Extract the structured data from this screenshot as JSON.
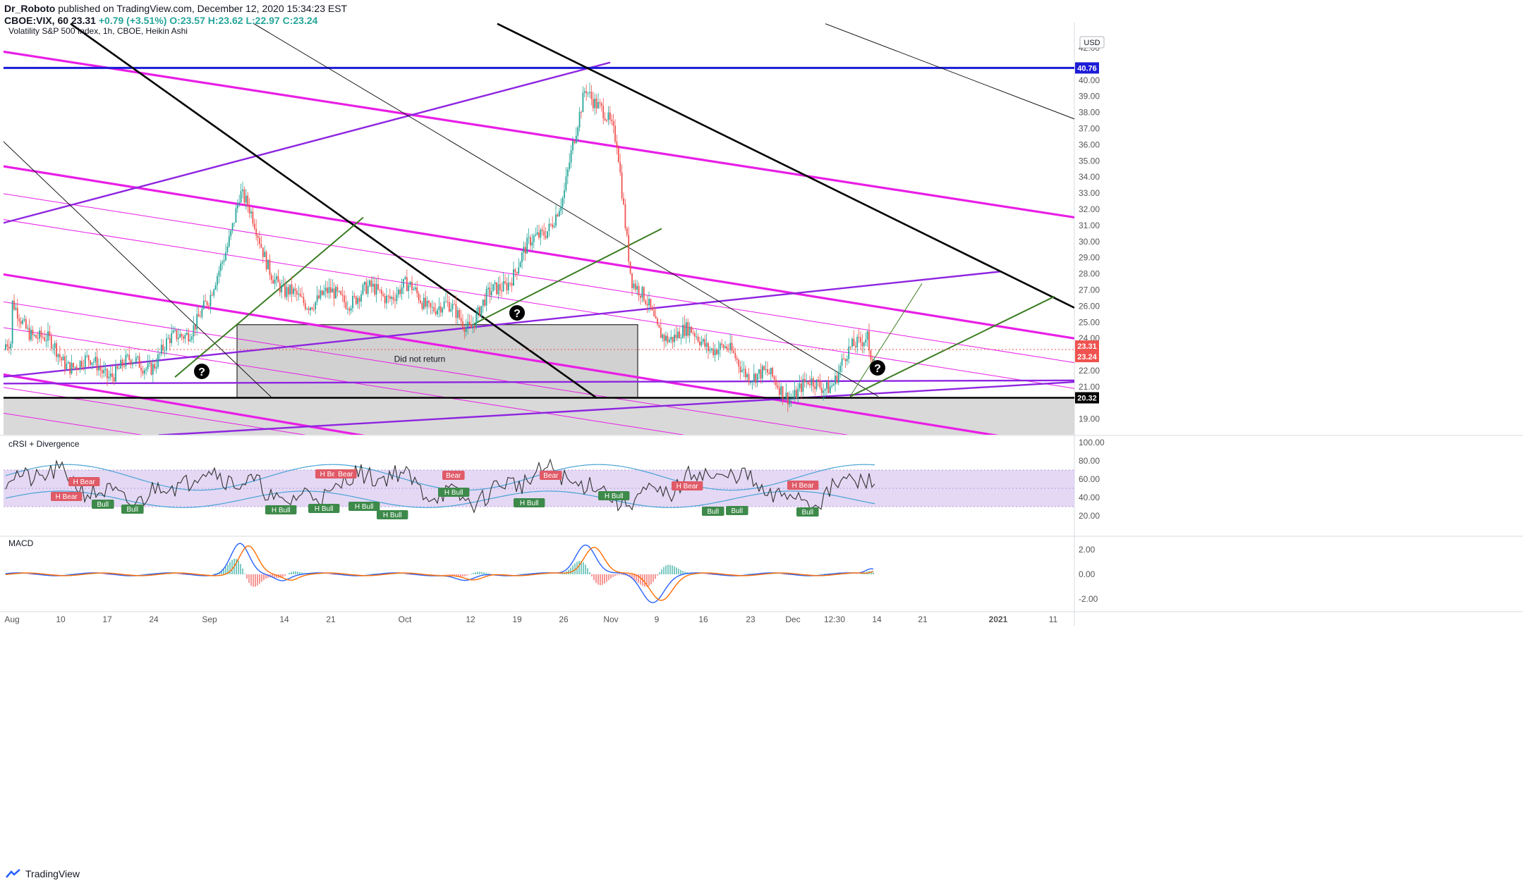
{
  "header": {
    "author": "Dr_Roboto",
    "published_text": "published on TradingView.com, December 12, 2020 15:34:23 EST",
    "symbol_line": "CBOE:VIX, 60",
    "last": "23.31",
    "change": "+0.79 (+3.51%)",
    "open": "O:23.57",
    "high": "H:23.62",
    "low": "L:22.97",
    "close": "C:23.24"
  },
  "panes": {
    "main_title": "Volatility S&P 500 Index, 1h, CBOE, Heikin Ashi",
    "crsi_title": "cRSI + Divergence",
    "macd_title": "MACD"
  },
  "currency": "USD",
  "colors": {
    "up": "#26a69a",
    "down": "#ef5350",
    "magenta": "#e91ee6",
    "purple": "#8e24e0",
    "blue": "#1b1bd6",
    "green": "#3b7d23",
    "black": "#000000",
    "crsi_band": "#d9c8ef",
    "crsi_line": "#333333",
    "crsi_channel": "#4aa3d6",
    "macd": "#2962ff",
    "signal": "#ff6d00"
  },
  "annotations": {
    "box_label": "Did not return",
    "question_mark": "?"
  },
  "price_tags": {
    "top": "40.76",
    "last": "23.31",
    "close": "23.24",
    "floor": "20.32"
  },
  "footer": {
    "brand": "TradingView"
  },
  "chart_data": [
    {
      "type": "line",
      "subtype": "candlestick (Heikin Ashi)",
      "title": "Volatility S&P 500 Index, 1h, CBOE, Heikin Ashi",
      "x_tick_labels": [
        "Aug",
        "10",
        "17",
        "24",
        "Sep",
        "14",
        "21",
        "Oct",
        "12",
        "19",
        "26",
        "Nov",
        "9",
        "16",
        "23",
        "Dec",
        "12:30",
        "14",
        "21",
        "2021",
        "11"
      ],
      "y_tick_labels": [
        "19.00",
        "21.00",
        "22.00",
        "24.00",
        "25.00",
        "26.00",
        "27.00",
        "28.00",
        "29.00",
        "30.00",
        "31.00",
        "32.00",
        "33.00",
        "34.00",
        "35.00",
        "36.00",
        "37.00",
        "38.00",
        "39.00",
        "40.00",
        "42.00"
      ],
      "ylim": [
        18,
        43
      ],
      "series": [
        {
          "name": "",
          "approx_close_path": [
            [
              "Aug",
              25.8
            ],
            [
              "10",
              22.8
            ],
            [
              "17",
              22.0
            ],
            [
              "24",
              22.6
            ],
            [
              "Sep",
              26.0
            ],
            [
              "Sep 8",
              33.0
            ],
            [
              "14",
              26.5
            ],
            [
              "21",
              26.5
            ],
            [
              "Oct",
              27.0
            ],
            [
              "12",
              25.0
            ],
            [
              "19",
              28.5
            ],
            [
              "26",
              32.5
            ],
            [
              "Oct 29",
              40.0
            ],
            [
              "Nov 3",
              36.0
            ],
            [
              "Nov 5",
              28.0
            ],
            [
              "9",
              24.5
            ],
            [
              "16",
              24.0
            ],
            [
              "23",
              22.0
            ],
            [
              "Dec",
              20.6
            ],
            [
              "12:30",
              21.5
            ],
            [
              "Dec 10",
              24.8
            ],
            [
              "14",
              23.3
            ]
          ]
        }
      ]
    },
    {
      "type": "line",
      "title": "cRSI + Divergence",
      "y_tick_labels": [
        "20.00",
        "40.00",
        "60.00",
        "80.00",
        "100.00"
      ],
      "ylim": [
        10,
        100
      ],
      "band": [
        30,
        70
      ],
      "divergence_labels": [
        {
          "text": "H Bear",
          "kind": "bear"
        },
        {
          "text": "H Bear",
          "kind": "bear"
        },
        {
          "text": "Bull",
          "kind": "bull"
        },
        {
          "text": "Bull",
          "kind": "bull"
        },
        {
          "text": "H Bull",
          "kind": "bull"
        },
        {
          "text": "H Bull",
          "kind": "bull"
        },
        {
          "text": "H Bear",
          "kind": "bear"
        },
        {
          "text": "Bear",
          "kind": "bear"
        },
        {
          "text": "H Bull",
          "kind": "bull"
        },
        {
          "text": "H Bull",
          "kind": "bull"
        },
        {
          "text": "Bear",
          "kind": "bear"
        },
        {
          "text": "H Bull",
          "kind": "bull"
        },
        {
          "text": "H Bull",
          "kind": "bull"
        },
        {
          "text": "Bear",
          "kind": "bear"
        },
        {
          "text": "H Bull",
          "kind": "bull"
        },
        {
          "text": "H Bear",
          "kind": "bear"
        },
        {
          "text": "Bull",
          "kind": "bull"
        },
        {
          "text": "Bull",
          "kind": "bull"
        },
        {
          "text": "H Bear",
          "kind": "bear"
        },
        {
          "text": "Bull",
          "kind": "bull"
        }
      ]
    },
    {
      "type": "line",
      "title": "MACD",
      "y_tick_labels": [
        "2.00",
        "0.00",
        "-2.00"
      ],
      "ylim": [
        -2.6,
        2.9
      ]
    }
  ]
}
